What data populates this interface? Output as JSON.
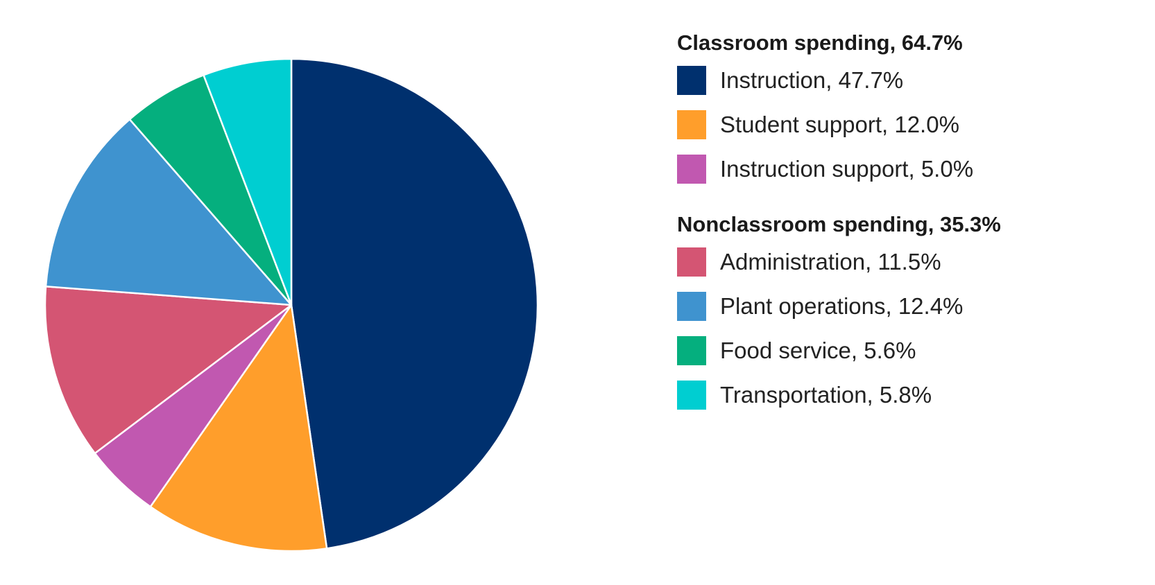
{
  "chart_data": {
    "type": "pie",
    "groups": [
      {
        "title": "Classroom spending, 64.7%",
        "items": [
          {
            "label": "Instruction, 47.7%",
            "value": 47.7,
            "color": "#00306e"
          },
          {
            "label": "Student support, 12.0%",
            "value": 12.0,
            "color": "#ff9e2b"
          },
          {
            "label": "Instruction support, 5.0%",
            "value": 5.0,
            "color": "#c158b0"
          }
        ]
      },
      {
        "title": "Nonclassroom spending, 35.3%",
        "items": [
          {
            "label": "Administration, 11.5%",
            "value": 11.5,
            "color": "#d45573"
          },
          {
            "label": "Plant operations, 12.4%",
            "value": 12.4,
            "color": "#3f93cf"
          },
          {
            "label": "Food service, 5.6%",
            "value": 5.6,
            "color": "#05af7e"
          },
          {
            "label": "Transportation, 5.8%",
            "value": 5.8,
            "color": "#00ced1"
          }
        ]
      }
    ],
    "start_angle_deg": 0,
    "direction": "clockwise"
  }
}
